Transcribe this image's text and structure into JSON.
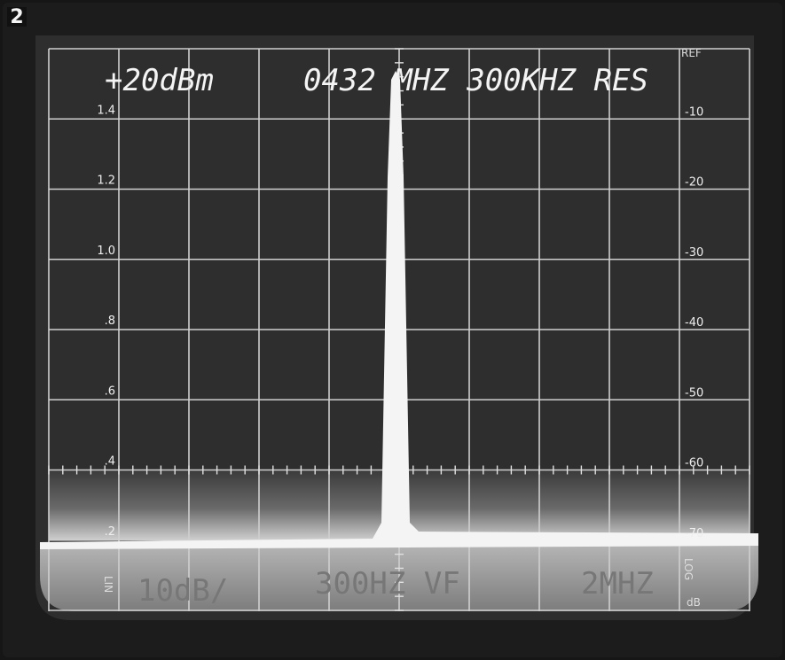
{
  "figure_label": "2",
  "header": {
    "level": "+20dBm",
    "settings": "0432 MHZ 300KHZ RES",
    "ref": "REF"
  },
  "left_scale": [
    "1.4",
    "1.2",
    "1.0",
    ".8",
    ".6",
    ".4",
    ".2"
  ],
  "right_scale": [
    "-10",
    "-20",
    "-30",
    "-40",
    "-50",
    "-60",
    "-70"
  ],
  "footer": {
    "scale": "10dB/",
    "filter": "300HZ VF",
    "span": "2MHZ",
    "lin": "LIN",
    "log": "LOG",
    "db": "dB"
  }
}
